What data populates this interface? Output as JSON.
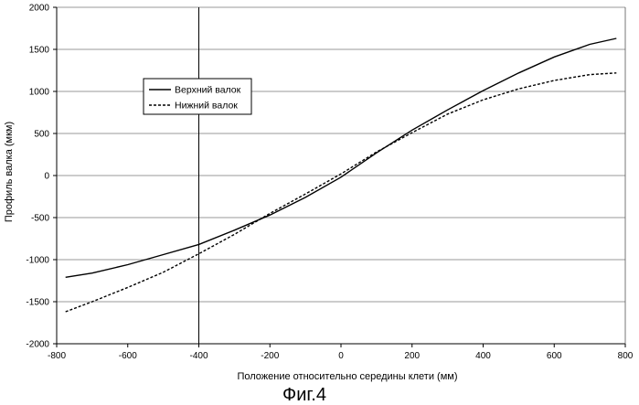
{
  "figure_caption": "Фиг.4",
  "chart_data": {
    "type": "line",
    "xlabel": "Положение относительно середины клети   (мм)",
    "ylabel": "Профиль валка   (мкм)",
    "xlim": [
      -800,
      800
    ],
    "ylim": [
      -2000,
      2000
    ],
    "x_ticks": [
      "-800",
      "-600",
      "-400",
      "-200",
      "0",
      "200",
      "400",
      "600",
      "800"
    ],
    "y_ticks": [
      "2000",
      "1500",
      "1000",
      "500",
      "0",
      "-500",
      "-1000",
      "-1500",
      "-2000"
    ],
    "horizontal_grid": true,
    "reference_vertical_line_x": -400,
    "legend_position": "upper-left",
    "series": [
      {
        "name": "Верхний валок",
        "style": "solid",
        "color": "#000000",
        "x": [
          -775,
          -700,
          -600,
          -500,
          -400,
          -300,
          -200,
          -100,
          0,
          100,
          200,
          300,
          400,
          500,
          600,
          700,
          775
        ],
        "y": [
          -1210,
          -1160,
          -1060,
          -940,
          -820,
          -650,
          -470,
          -260,
          -20,
          270,
          540,
          780,
          1010,
          1220,
          1410,
          1560,
          1630
        ]
      },
      {
        "name": "Нижний валок",
        "style": "dashed",
        "color": "#000000",
        "x": [
          -775,
          -700,
          -600,
          -500,
          -400,
          -300,
          -200,
          -100,
          0,
          100,
          200,
          300,
          400,
          500,
          600,
          700,
          775
        ],
        "y": [
          -1620,
          -1500,
          -1330,
          -1150,
          -930,
          -700,
          -450,
          -220,
          20,
          280,
          510,
          730,
          900,
          1030,
          1130,
          1200,
          1220
        ]
      }
    ]
  }
}
